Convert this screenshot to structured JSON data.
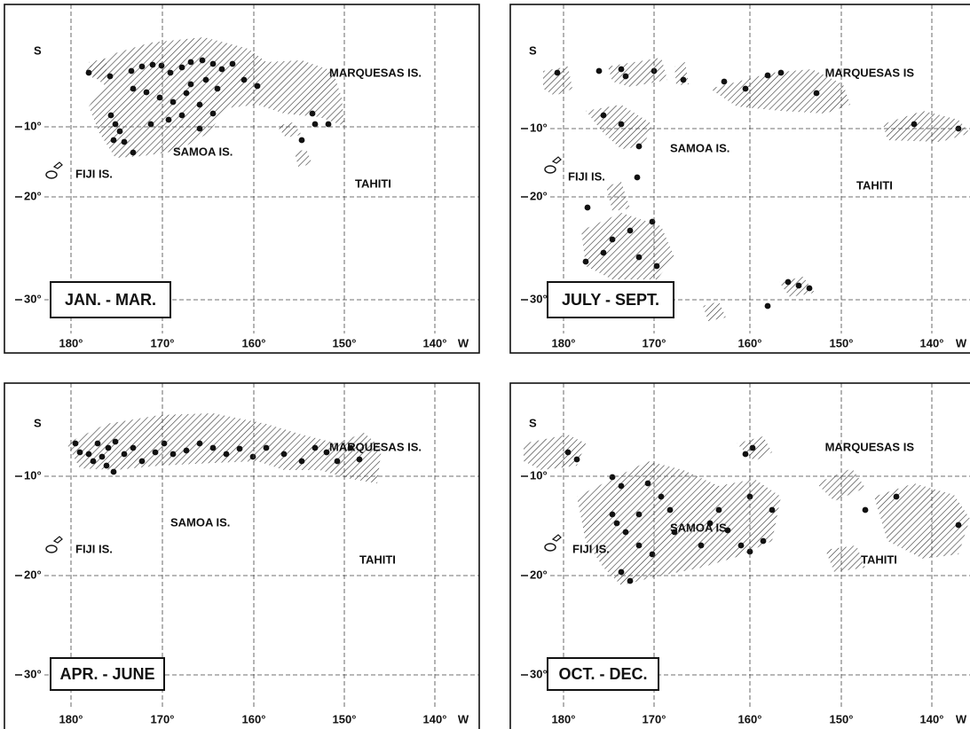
{
  "panels": [
    {
      "season": "JAN. - MAR.",
      "latitude_hemisphere": "S",
      "latitude_labels": [
        "10°",
        "20°",
        "30°"
      ],
      "longitude_labels": [
        "180°",
        "170°",
        "160°",
        "150°",
        "140°"
      ],
      "longitude_hemisphere": "W",
      "places": [
        "MARQUESAS IS.",
        "SAMOA IS.",
        "FIJI IS.",
        "TAHITI"
      ]
    },
    {
      "season": "JULY - SEPT.",
      "latitude_hemisphere": "S",
      "latitude_labels": [
        "10°",
        "20°",
        "30°"
      ],
      "longitude_labels": [
        "180°",
        "170°",
        "160°",
        "150°",
        "140°"
      ],
      "longitude_hemisphere": "W",
      "places": [
        "MARQUESAS IS",
        "SAMOA IS.",
        "FIJI IS.",
        "TAHITI"
      ]
    },
    {
      "season": "APR. - JUNE",
      "latitude_hemisphere": "S",
      "latitude_labels": [
        "10°",
        "20°",
        "30°"
      ],
      "longitude_labels": [
        "180°",
        "170°",
        "160°",
        "150°",
        "140°"
      ],
      "longitude_hemisphere": "W",
      "places": [
        "MARQUESAS IS.",
        "SAMOA IS.",
        "FIJI IS.",
        "TAHITI"
      ]
    },
    {
      "season": "OCT. - DEC.",
      "latitude_hemisphere": "S",
      "latitude_labels": [
        "10°",
        "20°",
        "30°"
      ],
      "longitude_labels": [
        "180°",
        "170°",
        "160°",
        "150°",
        "140°"
      ],
      "longitude_hemisphere": "W",
      "places": [
        "MARQUESAS IS",
        "SAMOA IS.",
        "FIJI IS.",
        "TAHITI"
      ]
    }
  ]
}
